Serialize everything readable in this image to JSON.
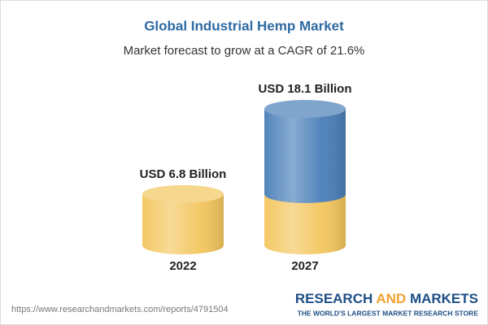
{
  "chart_data": {
    "type": "cylinder",
    "title": "Global Industrial Hemp Market",
    "subtitle": "Market forecast to grow at a CAGR of 21.6%",
    "categories": [
      "2022",
      "2027"
    ],
    "values": [
      6.8,
      18.1
    ],
    "value_labels": [
      "USD 6.8 Billion",
      "USD 18.1 Billion"
    ],
    "colors": [
      "#f3c65e",
      "#4a7fb8"
    ]
  },
  "footer": {
    "source": "https://www.researchandmarkets.com/reports/4791504",
    "brand": [
      "RESEARCH",
      "AND",
      "MARKETS"
    ],
    "tagline": "THE WORLD'S LARGEST MARKET RESEARCH STORE"
  }
}
